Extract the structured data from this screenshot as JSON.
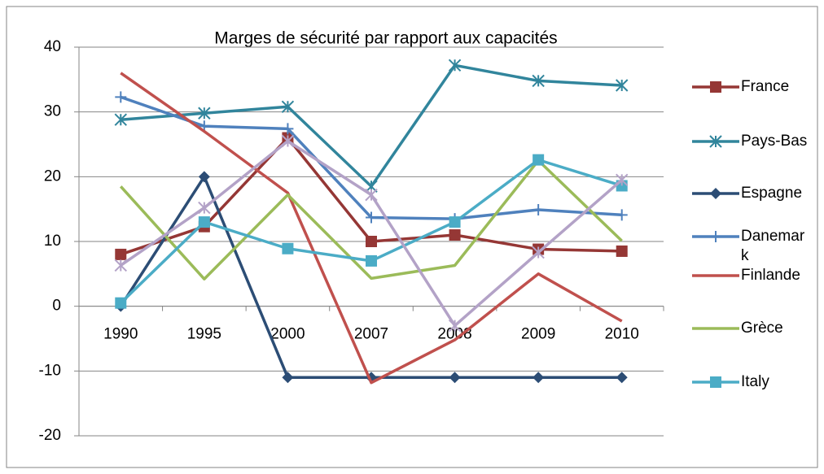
{
  "chart_data": {
    "type": "line",
    "title": "Marges de sécurité par rapport aux capacités",
    "categories": [
      "1990",
      "1995",
      "2000",
      "2007",
      "2008",
      "2009",
      "2010"
    ],
    "ylim": [
      -20,
      40
    ],
    "yticks": [
      -20,
      -10,
      0,
      10,
      20,
      30,
      40
    ],
    "grid": true,
    "legend": "right",
    "series": [
      {
        "name": "France",
        "color": "#953735",
        "marker": "square",
        "values": [
          8,
          12.3,
          26,
          10,
          11,
          8.8,
          8.5
        ]
      },
      {
        "name": "Pays-Bas",
        "color": "#31859c",
        "marker": "star",
        "values": [
          28.8,
          29.8,
          30.8,
          18.5,
          37.2,
          34.8,
          34.1
        ]
      },
      {
        "name": "Espagne",
        "color": "#2c4d75",
        "marker": "diamond",
        "values": [
          0,
          20,
          -11,
          -11,
          -11,
          -11,
          -11
        ]
      },
      {
        "name": "Danemark",
        "color": "#4f81bd",
        "marker": "plus",
        "values": [
          32.3,
          27.8,
          27.4,
          13.7,
          13.5,
          14.9,
          14.1
        ]
      },
      {
        "name": "Finlande",
        "color": "#c0504d",
        "marker": "none",
        "values": [
          36,
          27,
          17.5,
          -11.8,
          -5.2,
          5,
          -2.3
        ]
      },
      {
        "name": "Grèce",
        "color": "#9bbb59",
        "marker": "none",
        "values": [
          18.5,
          4.2,
          17.2,
          4.3,
          6.3,
          22.5,
          10.1
        ]
      },
      {
        "name": "Italy",
        "color": "#4bacc6",
        "marker": "square",
        "values": [
          0.5,
          13,
          8.9,
          7,
          13,
          22.6,
          18.6
        ]
      },
      {
        "color": "#b3a2c7",
        "marker": "star",
        "values": [
          6.3,
          15.2,
          25.5,
          17.2,
          -3,
          8.3,
          19.5
        ]
      }
    ]
  }
}
